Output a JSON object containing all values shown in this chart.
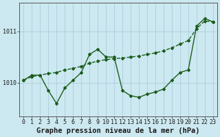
{
  "xlabel": "Graphe pression niveau de la mer (hPa)",
  "hours": [
    0,
    1,
    2,
    3,
    4,
    5,
    6,
    7,
    8,
    9,
    10,
    11,
    12,
    13,
    14,
    15,
    16,
    17,
    18,
    19,
    20,
    21,
    22,
    23
  ],
  "line1": [
    1010.05,
    1010.15,
    1010.15,
    1009.85,
    1009.6,
    1009.9,
    1010.05,
    1010.2,
    1010.55,
    1010.65,
    1010.5,
    1010.5,
    1009.85,
    1009.75,
    1009.72,
    1009.78,
    1009.82,
    1009.88,
    1010.05,
    1010.2,
    1010.25,
    1011.1,
    1011.25,
    1011.18
  ],
  "line2": [
    1010.05,
    1010.12,
    1010.15,
    1010.18,
    1010.2,
    1010.25,
    1010.28,
    1010.32,
    1010.38,
    1010.42,
    1010.45,
    1010.47,
    1010.48,
    1010.5,
    1010.52,
    1010.55,
    1010.58,
    1010.62,
    1010.68,
    1010.75,
    1010.82,
    1011.05,
    1011.2,
    1011.18
  ],
  "line_color": "#1a5c1a",
  "bg_color": "#cce8f0",
  "grid_color_v": "#a8c8d8",
  "grid_color_h": "#a8c8d8",
  "ylim_min": 1009.35,
  "ylim_max": 1011.55,
  "yticks": [
    1010,
    1011
  ],
  "marker": "D",
  "marker_size": 2.0,
  "linewidth": 1.0,
  "xlabel_fontsize": 7.5,
  "tick_fontsize": 6.0
}
